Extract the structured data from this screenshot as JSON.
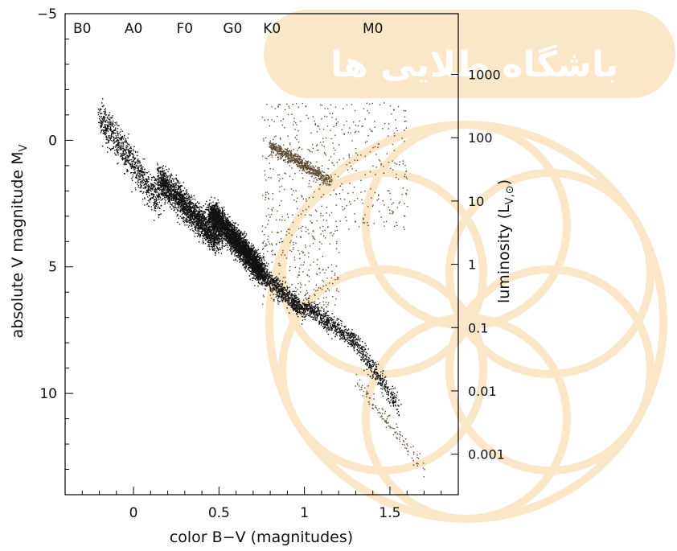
{
  "chart_data": {
    "type": "scatter",
    "x_axis": {
      "label": "color B−V (magnitudes)",
      "range": [
        -0.4,
        1.9
      ],
      "ticks": [
        0,
        0.5,
        1,
        1.5
      ],
      "tick_labels": [
        "0",
        "0.5",
        "1",
        "1.5"
      ]
    },
    "y_axis_left": {
      "label": "absolute V magnitude M",
      "label_subscript": "V",
      "range": [
        -5,
        14
      ],
      "inverted": true,
      "ticks": [
        -5,
        0,
        5,
        10
      ],
      "tick_labels": [
        "−5",
        "0",
        "5",
        "10"
      ]
    },
    "y_axis_right": {
      "label": "luminosity (L",
      "label_subscript": "V,⊙",
      "label_close": ")",
      "ticks_mag": [
        -2.6,
        -0.1,
        2.4,
        4.9,
        7.4,
        9.9,
        12.4
      ],
      "tick_labels": [
        "1000",
        "100",
        "10",
        "1",
        "0.1",
        "0.01",
        "0.001"
      ]
    },
    "spectral_classes": [
      {
        "label": "B0",
        "bv": -0.3
      },
      {
        "label": "A0",
        "bv": 0.0
      },
      {
        "label": "F0",
        "bv": 0.3
      },
      {
        "label": "G0",
        "bv": 0.58
      },
      {
        "label": "K0",
        "bv": 0.81
      },
      {
        "label": "M0",
        "bv": 1.4
      }
    ],
    "series": [
      {
        "color": "#111111",
        "distribution": [
          {
            "bv_range": [
              -0.2,
              0.15
            ],
            "mv_range": [
              -1.0,
              2.5
            ],
            "count": 900,
            "spread": 0.6
          },
          {
            "bv_range": [
              0.15,
              0.5
            ],
            "mv_range": [
              1.5,
              4.0
            ],
            "count": 2200,
            "spread": 0.55
          },
          {
            "bv_range": [
              0.45,
              0.75
            ],
            "mv_range": [
              2.8,
              5.2
            ],
            "count": 3400,
            "spread": 0.5
          },
          {
            "bv_range": [
              0.7,
              1.0
            ],
            "mv_range": [
              5.0,
              6.8
            ],
            "count": 900,
            "spread": 0.35
          },
          {
            "bv_range": [
              1.0,
              1.3
            ],
            "mv_range": [
              6.5,
              8.0
            ],
            "count": 600,
            "spread": 0.35
          },
          {
            "bv_range": [
              1.3,
              1.55
            ],
            "mv_range": [
              8.0,
              10.5
            ],
            "count": 350,
            "spread": 0.35
          }
        ]
      },
      {
        "color": "#5a4a2e",
        "distribution": [
          {
            "bv_range": [
              0.8,
              1.15
            ],
            "mv_range": [
              0.2,
              1.6
            ],
            "count": 650,
            "spread": 0.25
          },
          {
            "bv_range": [
              0.75,
              1.6
            ],
            "mv_range": [
              -1.5,
              3.5
            ],
            "count": 500,
            "spread": 0.0
          },
          {
            "bv_range": [
              0.75,
              1.2
            ],
            "mv_range": [
              3.5,
              6.5
            ],
            "count": 260,
            "spread": 0.0
          },
          {
            "bv_range": [
              1.3,
              1.7
            ],
            "mv_range": [
              9.5,
              13.0
            ],
            "count": 120,
            "spread": 0.3
          }
        ]
      }
    ],
    "watermark_text": "باشگاه طلایی ها",
    "watermark_color": "#f6d59a"
  }
}
